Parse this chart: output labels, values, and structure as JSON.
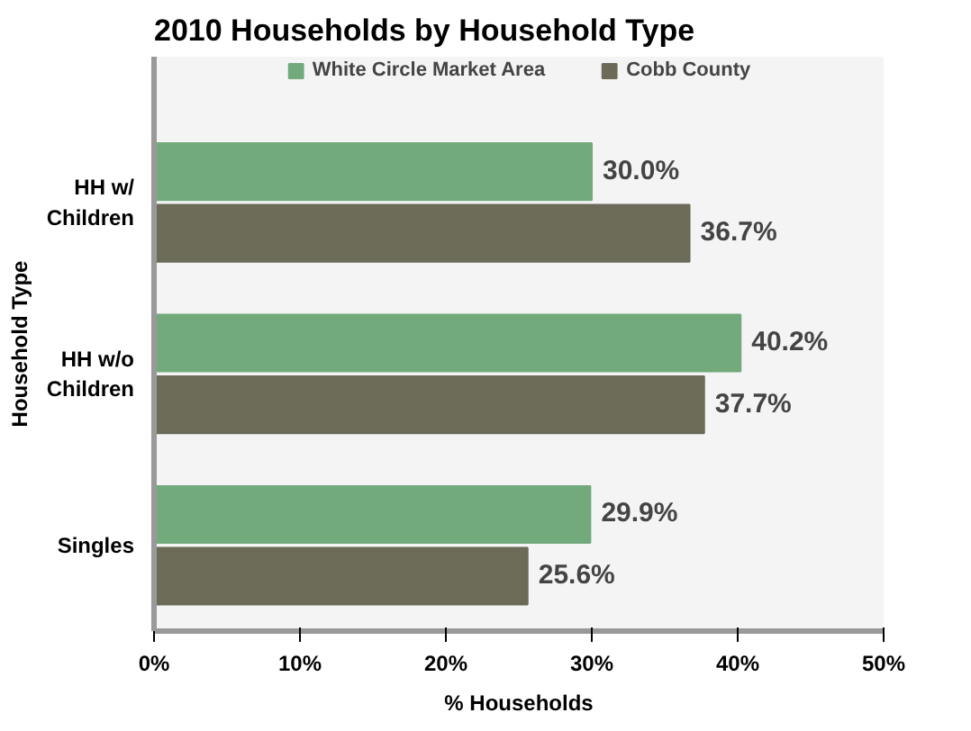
{
  "chart_data": {
    "type": "bar",
    "orientation": "horizontal",
    "title": "2010 Households by Household Type",
    "xlabel": "% Households",
    "ylabel": "Household Type",
    "categories": [
      "HH w/\nChildren",
      "HH w/o\nChildren",
      "Singles"
    ],
    "series": [
      {
        "name": "White Circle Market Area",
        "color": "#72aa7c",
        "values": [
          30.0,
          40.2,
          29.9
        ],
        "value_labels": [
          "30.0%",
          "40.2%",
          "29.9%"
        ]
      },
      {
        "name": "Cobb County",
        "color": "#6b6b58",
        "values": [
          36.7,
          37.7,
          25.6
        ],
        "value_labels": [
          "36.7%",
          "37.7%",
          "25.6%"
        ]
      }
    ],
    "xlim": [
      0,
      50
    ],
    "xticks": [
      {
        "value": 0,
        "label": "0%"
      },
      {
        "value": 10,
        "label": "10%"
      },
      {
        "value": 20,
        "label": "20%"
      },
      {
        "value": 30,
        "label": "30%"
      },
      {
        "value": 40,
        "label": "40%"
      },
      {
        "value": 50,
        "label": "50%"
      }
    ],
    "grid": false,
    "legend": "top"
  }
}
